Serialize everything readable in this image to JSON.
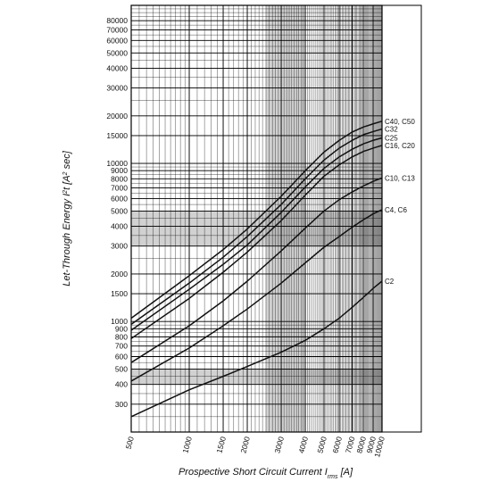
{
  "chart_data": {
    "type": "line",
    "xscale": "log",
    "yscale": "log",
    "xlim": [
      500,
      10000
    ],
    "ylim": [
      200,
      100000
    ],
    "xlabel_main": "Prospective Short Circuit Current I",
    "xlabel_sub": "rms",
    "xlabel_unit": " [A]",
    "ylabel_main": "Let-Through Energy I",
    "ylabel_sup": "2",
    "ylabel_rest": "t [A",
    "ylabel_sup2": "2",
    "ylabel_end": " sec]",
    "x_ticks": [
      "500",
      "1000",
      "1500",
      "2000",
      "3000",
      "4000",
      "5000",
      "6000",
      "7000",
      "8000",
      "9000",
      "10000"
    ],
    "y_ticks": [
      "80000",
      "70000",
      "60000",
      "50000",
      "40000",
      "30000",
      "20000",
      "15000",
      "10000",
      "9000",
      "8000",
      "7000",
      "6000",
      "5000",
      "4000",
      "3000",
      "2000",
      "1500",
      "1000",
      "900",
      "800",
      "700",
      "600",
      "500",
      "400",
      "300"
    ],
    "series": [
      {
        "name": "C40, C50",
        "x": [
          500,
          1000,
          1500,
          2000,
          3000,
          4000,
          5000,
          6000,
          7000,
          8000,
          9000,
          10000
        ],
        "y": [
          1050,
          1950,
          2850,
          3850,
          6200,
          9000,
          11800,
          14000,
          15800,
          17000,
          17800,
          18500
        ]
      },
      {
        "name": "C32",
        "x": [
          500,
          1000,
          1500,
          2000,
          3000,
          4000,
          5000,
          6000,
          7000,
          8000,
          9000,
          10000
        ],
        "y": [
          960,
          1750,
          2550,
          3450,
          5500,
          8000,
          10500,
          12500,
          14000,
          15200,
          15900,
          16500
        ]
      },
      {
        "name": "C25",
        "x": [
          500,
          1000,
          1500,
          2000,
          3000,
          4000,
          5000,
          6000,
          7000,
          8000,
          9000,
          10000
        ],
        "y": [
          880,
          1600,
          2300,
          3050,
          4900,
          7100,
          9300,
          11000,
          12300,
          13300,
          14000,
          14500
        ]
      },
      {
        "name": "C16, C20",
        "x": [
          500,
          1000,
          1500,
          2000,
          3000,
          4000,
          5000,
          6000,
          7000,
          8000,
          9000,
          10000
        ],
        "y": [
          780,
          1400,
          2050,
          2750,
          4350,
          6300,
          8300,
          9800,
          11000,
          11900,
          12500,
          13000
        ]
      },
      {
        "name": "C10, C13",
        "x": [
          500,
          1000,
          1500,
          2000,
          3000,
          4000,
          5000,
          6000,
          7000,
          8000,
          9000,
          10000
        ],
        "y": [
          550,
          940,
          1350,
          1800,
          2800,
          3900,
          5000,
          5900,
          6600,
          7200,
          7700,
          8100
        ]
      },
      {
        "name": "C4, C6",
        "x": [
          500,
          1000,
          1500,
          2000,
          3000,
          4000,
          5000,
          6000,
          7000,
          8000,
          9000,
          10000
        ],
        "y": [
          420,
          680,
          940,
          1200,
          1750,
          2350,
          2950,
          3450,
          3950,
          4400,
          4800,
          5100
        ]
      },
      {
        "name": "C2",
        "x": [
          500,
          1000,
          1500,
          2000,
          3000,
          4000,
          5000,
          6000,
          7000,
          8000,
          9000,
          10000
        ],
        "y": [
          250,
          370,
          450,
          520,
          640,
          760,
          900,
          1050,
          1230,
          1420,
          1620,
          1800
        ]
      }
    ],
    "grid": true,
    "shaded_bands": {
      "y": [
        [
          400,
          500
        ],
        [
          3000,
          5000
        ]
      ],
      "x": [
        [
          2500,
          4000
        ]
      ]
    },
    "colors": {
      "line": "#111111",
      "grid": "#000000",
      "band": "#9a9a9a"
    }
  }
}
